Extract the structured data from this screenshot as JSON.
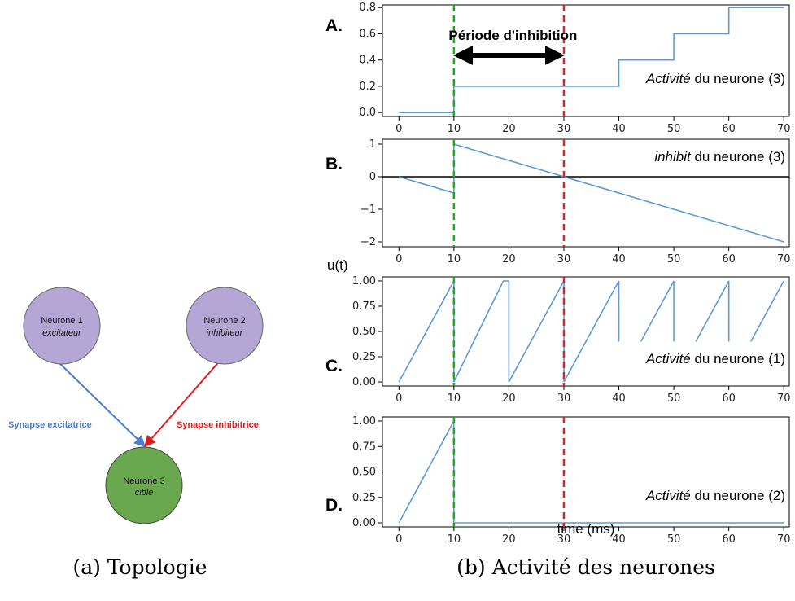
{
  "topology": {
    "nodes": [
      {
        "name": "Neurone 1",
        "role": "excitateur",
        "color": "#b4a7d6"
      },
      {
        "name": "Neurone 2",
        "role": "inhibiteur",
        "color": "#b4a7d6"
      },
      {
        "name": "Neurone 3",
        "role": "cible",
        "color": "#6aa84f"
      }
    ],
    "edges": [
      {
        "label": "Synapse excitatrice",
        "color": "#4a7bd0"
      },
      {
        "label": "Synapse inhibitrice",
        "color": "#e31a1c"
      }
    ]
  },
  "captions": {
    "left": "(a) Topologie",
    "right": "(b) Activité des neurones"
  },
  "ylabel_shared": "u(t)",
  "xlabel": "time (ms)",
  "colors": {
    "line": "#5b9bd5",
    "excitatory_marker": "#2ca02c",
    "inhibitory_marker": "#d62728",
    "zero_line": "#000000"
  },
  "markers": {
    "start": 10,
    "end": 30
  },
  "chart_data": [
    {
      "type": "line",
      "panel": "A.",
      "title": "",
      "annotation": {
        "italic": "Activité",
        "rest": " du neurone (3)"
      },
      "arrow_label": "Période d'inhibition",
      "xlim": [
        -3,
        71
      ],
      "ylim": [
        -0.03,
        0.82
      ],
      "xticks": [
        0,
        10,
        20,
        30,
        40,
        50,
        60,
        70
      ],
      "yticks": [
        0.0,
        0.2,
        0.4,
        0.6,
        0.8
      ],
      "ytick_labels": [
        "0.0",
        "0.2",
        "0.4",
        "0.6",
        "0.8"
      ],
      "series": [
        {
          "segments": [
            {
              "x": [
                0,
                10,
                10,
                40,
                40,
                50,
                50,
                60,
                60,
                70
              ],
              "y": [
                0.0,
                0.0,
                0.2,
                0.2,
                0.4,
                0.4,
                0.6,
                0.6,
                0.8,
                0.8
              ]
            }
          ]
        }
      ]
    },
    {
      "type": "line",
      "panel": "B.",
      "title": "",
      "annotation": {
        "italic": "inhibit",
        "rest": " du neurone (3)"
      },
      "xlim": [
        -3,
        71
      ],
      "ylim": [
        -2.15,
        1.15
      ],
      "xticks": [
        0,
        10,
        20,
        30,
        40,
        50,
        60,
        70
      ],
      "yticks": [
        1,
        0,
        -1,
        -2
      ],
      "ytick_labels": [
        "1",
        "0",
        "−1",
        "−2"
      ],
      "zero_line": true,
      "series": [
        {
          "segments": [
            {
              "x": [
                0,
                10,
                10,
                70
              ],
              "y": [
                0.0,
                -0.5,
                1.0,
                -2.0
              ]
            }
          ]
        }
      ]
    },
    {
      "type": "line",
      "panel": "C.",
      "title": "",
      "annotation": {
        "italic": "Activité",
        "rest": " du neurone (1)"
      },
      "xlim": [
        -3,
        71
      ],
      "ylim": [
        -0.04,
        1.04
      ],
      "xticks": [
        0,
        10,
        20,
        30,
        40,
        50,
        60,
        70
      ],
      "yticks": [
        0.0,
        0.25,
        0.5,
        0.75,
        1.0
      ],
      "ytick_labels": [
        "0.00",
        "0.25",
        "0.50",
        "0.75",
        "1.00"
      ],
      "series": [
        {
          "segments": [
            {
              "x": [
                0,
                10,
                10,
                19,
                20,
                20,
                30,
                30,
                40,
                40
              ],
              "y": [
                0.0,
                1.0,
                0.0,
                1.0,
                1.0,
                0.0,
                1.0,
                0.0,
                1.0,
                0.4
              ]
            },
            {
              "x": [
                44,
                50,
                50
              ],
              "y": [
                0.4,
                1.0,
                0.4
              ]
            },
            {
              "x": [
                54,
                60,
                60
              ],
              "y": [
                0.4,
                1.0,
                0.4
              ]
            },
            {
              "x": [
                64,
                70
              ],
              "y": [
                0.4,
                1.0
              ]
            }
          ]
        }
      ]
    },
    {
      "type": "line",
      "panel": "D.",
      "title": "",
      "annotation": {
        "italic": "Activité",
        "rest": " du neurone (2)"
      },
      "xlim": [
        -3,
        71
      ],
      "ylim": [
        -0.04,
        1.04
      ],
      "xticks": [
        0,
        10,
        20,
        30,
        40,
        50,
        60,
        70
      ],
      "yticks": [
        0.0,
        0.25,
        0.5,
        0.75,
        1.0
      ],
      "ytick_labels": [
        "0.00",
        "0.25",
        "0.50",
        "0.75",
        "1.00"
      ],
      "series": [
        {
          "segments": [
            {
              "x": [
                0,
                10,
                10,
                70
              ],
              "y": [
                0.0,
                1.0,
                0.0,
                0.0
              ]
            }
          ]
        }
      ]
    }
  ]
}
